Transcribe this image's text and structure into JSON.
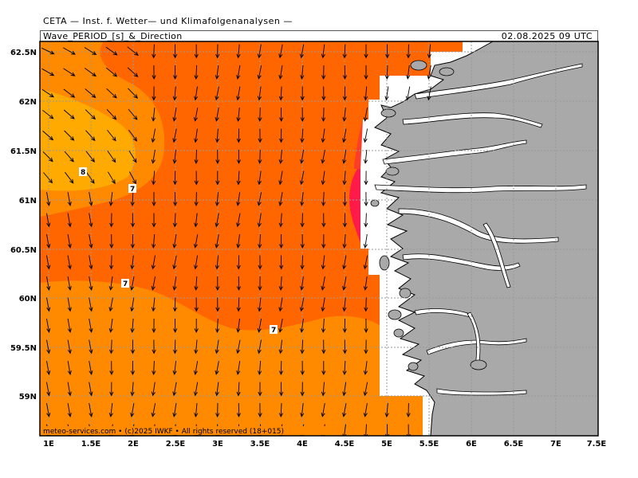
{
  "header": {
    "title": "CETA — Inst. f. Wetter— und Klimafolgenanalysen —",
    "subtitle": "Wave_PERIOD_[s]_&_Direction",
    "timestamp": "02.08.2025  09 UTC"
  },
  "map": {
    "lon_range": [
      0.95,
      7.5
    ],
    "lat_range": [
      58.6,
      62.6
    ],
    "lat_ticks": [
      "62.5N",
      "62N",
      "61.5N",
      "61N",
      "60.5N",
      "60N",
      "59.5N",
      "59N"
    ],
    "lon_ticks": [
      "1E",
      "1.5E",
      "2E",
      "2.5E",
      "3E",
      "3.5E",
      "4E",
      "4.5E",
      "5E",
      "5.5E",
      "6E",
      "6.5E",
      "7E",
      "7.5E"
    ],
    "contour_labels": [
      "8",
      "7",
      "7",
      "7"
    ],
    "land_color": "#a9a9a9",
    "period_colors": {
      "6s": "#ff8a00",
      "7s": "#ff6600",
      "8s": "#ffaa00",
      "9s": "#ffc000",
      "coastal_high": "#ff1a4a"
    },
    "arrow_direction": "mostly south / south-southwest, westerly in north-west corner",
    "credit": "meteo-services.com • (c)2025 IWKF • All rights reserved (18+015)"
  }
}
